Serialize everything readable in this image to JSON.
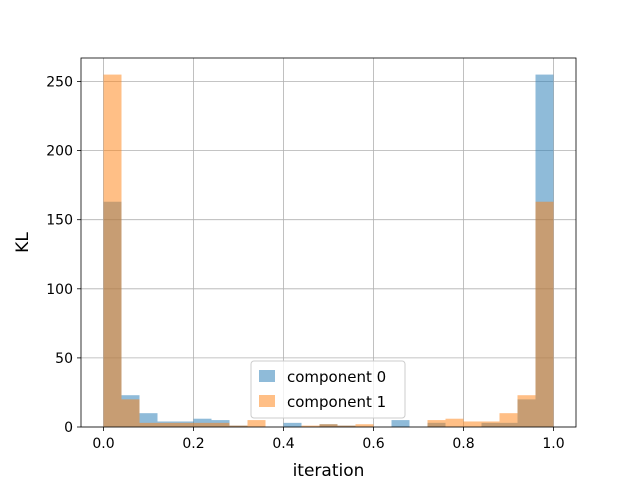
{
  "chart_data": {
    "type": "histogram",
    "xlabel": "iteration",
    "ylabel": "KL",
    "xlim": [
      -0.05,
      1.05
    ],
    "ylim": [
      0,
      267
    ],
    "xticks": [
      0.0,
      0.2,
      0.4,
      0.6,
      0.8,
      1.0
    ],
    "xtick_labels": [
      "0.0",
      "0.2",
      "0.4",
      "0.6",
      "0.8",
      "1.0"
    ],
    "yticks": [
      0,
      50,
      100,
      150,
      200,
      250
    ],
    "ytick_labels": [
      "0",
      "50",
      "100",
      "150",
      "200",
      "250"
    ],
    "grid": true,
    "legend_position": "bottom-center",
    "bin_edges": [
      0.0,
      0.04,
      0.08,
      0.12,
      0.16,
      0.2,
      0.24,
      0.28,
      0.32,
      0.36,
      0.4,
      0.44,
      0.48,
      0.52,
      0.56,
      0.6,
      0.64,
      0.68,
      0.72,
      0.76,
      0.8,
      0.84,
      0.88,
      0.92,
      0.96,
      1.0
    ],
    "series": [
      {
        "name": "component 0",
        "color": "#1f77b4",
        "opacity": 0.5,
        "values": [
          163,
          23,
          10,
          4,
          4,
          6,
          5,
          1,
          0,
          0,
          3,
          0,
          2,
          1,
          0,
          0,
          5,
          0,
          3,
          0,
          0,
          3,
          3,
          20,
          255
        ]
      },
      {
        "name": "component 1",
        "color": "#ff7f0e",
        "opacity": 0.5,
        "values": [
          255,
          20,
          3,
          3,
          3,
          3,
          3,
          1,
          5,
          0,
          0,
          1,
          2,
          1,
          2,
          0,
          0,
          0,
          5,
          6,
          4,
          4,
          10,
          23,
          163
        ]
      }
    ]
  }
}
